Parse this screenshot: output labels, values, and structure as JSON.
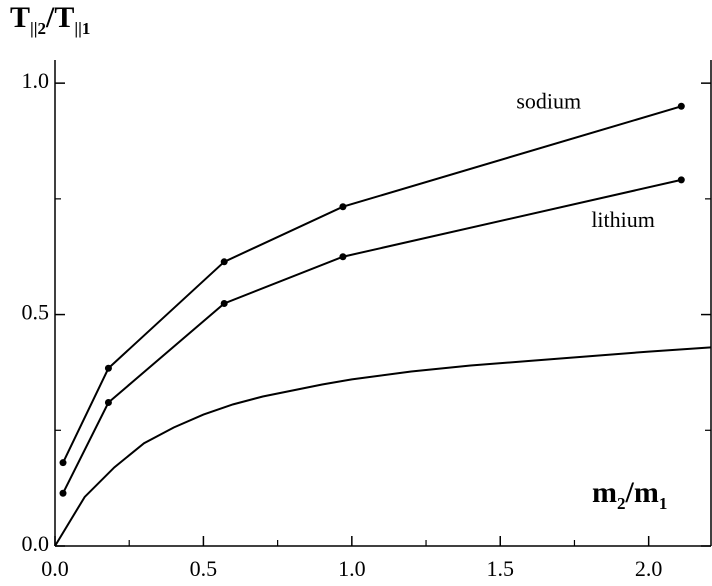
{
  "chart_data": {
    "type": "line",
    "x_label_parts": [
      "m",
      "2",
      "/m",
      "1"
    ],
    "y_label_parts": [
      "T",
      "||2",
      "/T",
      "||1"
    ],
    "xlim": [
      0,
      2.21
    ],
    "ylim": [
      0,
      1.05
    ],
    "xticks": [
      {
        "value": 0,
        "label": "0.0"
      },
      {
        "value": 0.5,
        "label": "0.5"
      },
      {
        "value": 1,
        "label": "1.0"
      },
      {
        "value": 1.5,
        "label": "1.5"
      },
      {
        "value": 2,
        "label": "2.0"
      }
    ],
    "xminorticks": [
      0.25,
      0.75,
      1.25,
      1.75
    ],
    "yticks": [
      {
        "value": 0,
        "label": "0.0"
      },
      {
        "value": 0.5,
        "label": "0.5"
      },
      {
        "value": 1,
        "label": "1.0"
      }
    ],
    "yminorticks": [
      0.25,
      0.75
    ],
    "series": [
      {
        "name": "sodium",
        "color": "#000000",
        "markers": true,
        "x": [
          0.027,
          0.18,
          0.57,
          0.97,
          2.11
        ],
        "values": [
          0.18,
          0.384,
          0.614,
          0.733,
          0.95
        ]
      },
      {
        "name": "lithium",
        "color": "#000000",
        "markers": true,
        "x": [
          0.027,
          0.18,
          0.57,
          0.97,
          2.11
        ],
        "values": [
          0.114,
          0.31,
          0.524,
          0.625,
          0.791
        ]
      },
      {
        "color": "#000000",
        "markers": false,
        "x": [
          0,
          0.1,
          0.2,
          0.3,
          0.4,
          0.5,
          0.6,
          0.7,
          0.8,
          0.9,
          1.0,
          1.2,
          1.4,
          1.6,
          1.8,
          2.0,
          2.21
        ],
        "values": [
          0,
          0.106,
          0.17,
          0.222,
          0.256,
          0.284,
          0.306,
          0.323,
          0.336,
          0.349,
          0.36,
          0.377,
          0.39,
          0.4,
          0.41,
          0.42,
          0.429
        ]
      }
    ]
  }
}
